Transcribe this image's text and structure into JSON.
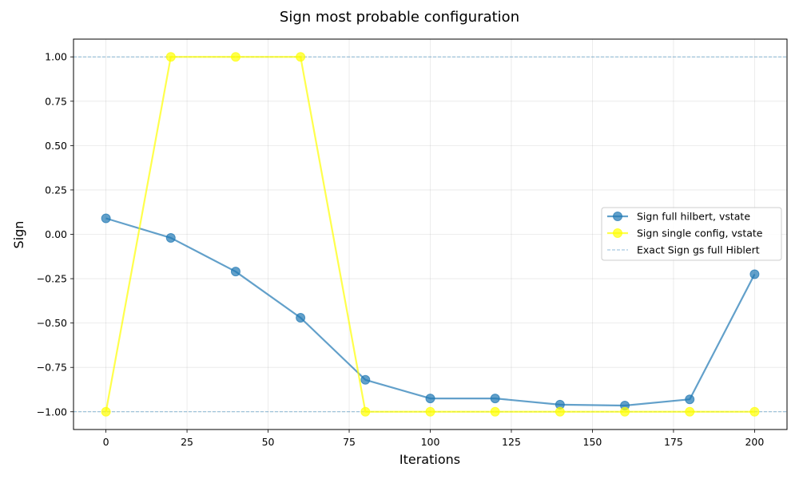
{
  "chart_data": {
    "type": "line",
    "title": "Sign most probable configuration",
    "xlabel": "Iterations",
    "ylabel": "Sign",
    "xlim": [
      -10,
      210
    ],
    "ylim": [
      -1.1,
      1.1
    ],
    "xticks": [
      0,
      25,
      50,
      75,
      100,
      125,
      150,
      175,
      200
    ],
    "xtick_labels": [
      "0",
      "25",
      "50",
      "75",
      "100",
      "125",
      "150",
      "175",
      "200"
    ],
    "yticks": [
      -1.0,
      -0.75,
      -0.5,
      -0.25,
      0.0,
      0.25,
      0.5,
      0.75,
      1.0
    ],
    "ytick_labels": [
      "−1.00",
      "−0.75",
      "−0.50",
      "−0.25",
      "0.00",
      "0.25",
      "0.50",
      "0.75",
      "1.00"
    ],
    "grid": true,
    "legend_position": "center-right",
    "x": [
      0,
      20,
      40,
      60,
      80,
      100,
      120,
      140,
      160,
      180,
      200
    ],
    "series": [
      {
        "name": "Sign full hilbert, vstate",
        "color": "#1f77b4",
        "marker": "circle",
        "values": [
          0.09,
          -0.02,
          -0.21,
          -0.47,
          -0.82,
          -0.925,
          -0.925,
          -0.96,
          -0.965,
          -0.93,
          -0.225
        ]
      },
      {
        "name": "Sign single config, vstate",
        "color": "#ffff00",
        "marker": "circle",
        "values": [
          -1.0,
          1.0,
          1.0,
          1.0,
          -1.0,
          -1.0,
          -1.0,
          -1.0,
          -1.0,
          -1.0,
          -1.0
        ]
      }
    ],
    "reference_lines": {
      "name": "Exact Sign gs full Hiblert",
      "color": "#1f77b4",
      "style": "dashed",
      "values": [
        1.0,
        -1.0
      ]
    }
  }
}
